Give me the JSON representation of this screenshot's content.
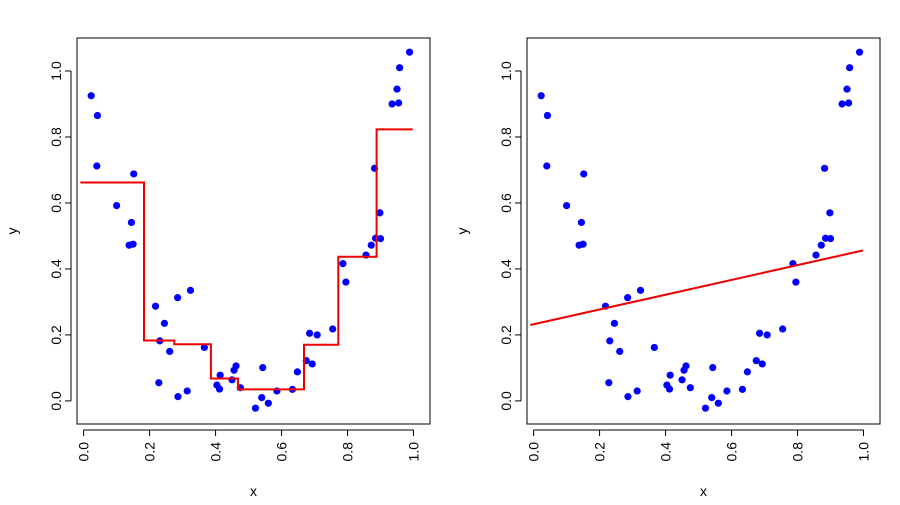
{
  "chart_data": [
    {
      "type": "scatter",
      "overlay": "step",
      "xlabel": "x",
      "ylabel": "y",
      "xlim": [
        -0.02,
        1.05
      ],
      "ylim": [
        -0.07,
        1.1
      ],
      "xticks": [
        0.0,
        0.2,
        0.4,
        0.6,
        0.8,
        1.0
      ],
      "xtick_labels": [
        "0.0",
        "0.2",
        "0.4",
        "0.6",
        "0.8",
        "1.0"
      ],
      "yticks": [
        0.0,
        0.2,
        0.4,
        0.6,
        0.8,
        1.0
      ],
      "ytick_labels": [
        "0.0",
        "0.2",
        "0.4",
        "0.6",
        "0.8",
        "1.0"
      ],
      "grid": false,
      "point_color": "#0000ff",
      "line_color": "#ee0000",
      "points": [
        [
          0.023,
          0.925
        ],
        [
          0.042,
          0.865
        ],
        [
          0.04,
          0.712
        ],
        [
          0.1,
          0.592
        ],
        [
          0.138,
          0.472
        ],
        [
          0.145,
          0.541
        ],
        [
          0.15,
          0.475
        ],
        [
          0.152,
          0.688
        ],
        [
          0.218,
          0.287
        ],
        [
          0.228,
          0.055
        ],
        [
          0.231,
          0.182
        ],
        [
          0.245,
          0.235
        ],
        [
          0.261,
          0.15
        ],
        [
          0.285,
          0.313
        ],
        [
          0.286,
          0.013
        ],
        [
          0.314,
          0.03
        ],
        [
          0.324,
          0.335
        ],
        [
          0.366,
          0.162
        ],
        [
          0.404,
          0.048
        ],
        [
          0.412,
          0.036
        ],
        [
          0.414,
          0.078
        ],
        [
          0.45,
          0.064
        ],
        [
          0.456,
          0.093
        ],
        [
          0.462,
          0.106
        ],
        [
          0.475,
          0.04
        ],
        [
          0.521,
          -0.022
        ],
        [
          0.543,
          0.101
        ],
        [
          0.54,
          0.01
        ],
        [
          0.56,
          -0.007
        ],
        [
          0.586,
          0.03
        ],
        [
          0.633,
          0.035
        ],
        [
          0.648,
          0.088
        ],
        [
          0.675,
          0.122
        ],
        [
          0.685,
          0.205
        ],
        [
          0.693,
          0.112
        ],
        [
          0.708,
          0.2
        ],
        [
          0.755,
          0.218
        ],
        [
          0.786,
          0.416
        ],
        [
          0.795,
          0.36
        ],
        [
          0.856,
          0.442
        ],
        [
          0.872,
          0.472
        ],
        [
          0.885,
          0.493
        ],
        [
          0.882,
          0.705
        ],
        [
          0.9,
          0.492
        ],
        [
          0.898,
          0.57
        ],
        [
          0.935,
          0.9
        ],
        [
          0.95,
          0.945
        ],
        [
          0.955,
          0.903
        ],
        [
          0.958,
          1.01
        ],
        [
          0.988,
          1.057
        ]
      ],
      "step": [
        [
          -0.01,
          0.662
        ],
        [
          0.183,
          0.662
        ],
        [
          0.183,
          0.183
        ],
        [
          0.275,
          0.183
        ],
        [
          0.275,
          0.172
        ],
        [
          0.386,
          0.172
        ],
        [
          0.386,
          0.068
        ],
        [
          0.468,
          0.068
        ],
        [
          0.468,
          0.035
        ],
        [
          0.668,
          0.035
        ],
        [
          0.668,
          0.17
        ],
        [
          0.772,
          0.17
        ],
        [
          0.772,
          0.437
        ],
        [
          0.888,
          0.437
        ],
        [
          0.888,
          0.823
        ],
        [
          0.998,
          0.823
        ]
      ]
    },
    {
      "type": "scatter",
      "overlay": "line",
      "xlabel": "x",
      "ylabel": "y",
      "xlim": [
        -0.02,
        1.05
      ],
      "ylim": [
        -0.07,
        1.1
      ],
      "xticks": [
        0.0,
        0.2,
        0.4,
        0.6,
        0.8,
        1.0
      ],
      "xtick_labels": [
        "0.0",
        "0.2",
        "0.4",
        "0.6",
        "0.8",
        "1.0"
      ],
      "yticks": [
        0.0,
        0.2,
        0.4,
        0.6,
        0.8,
        1.0
      ],
      "ytick_labels": [
        "0.0",
        "0.2",
        "0.4",
        "0.6",
        "0.8",
        "1.0"
      ],
      "grid": false,
      "point_color": "#0000ff",
      "line_color": "#ee0000",
      "points": [
        [
          0.023,
          0.925
        ],
        [
          0.042,
          0.865
        ],
        [
          0.04,
          0.712
        ],
        [
          0.1,
          0.592
        ],
        [
          0.138,
          0.472
        ],
        [
          0.145,
          0.541
        ],
        [
          0.15,
          0.475
        ],
        [
          0.152,
          0.688
        ],
        [
          0.218,
          0.287
        ],
        [
          0.228,
          0.055
        ],
        [
          0.231,
          0.182
        ],
        [
          0.245,
          0.235
        ],
        [
          0.261,
          0.15
        ],
        [
          0.285,
          0.313
        ],
        [
          0.286,
          0.013
        ],
        [
          0.314,
          0.03
        ],
        [
          0.324,
          0.335
        ],
        [
          0.366,
          0.162
        ],
        [
          0.404,
          0.048
        ],
        [
          0.412,
          0.036
        ],
        [
          0.414,
          0.078
        ],
        [
          0.45,
          0.064
        ],
        [
          0.456,
          0.093
        ],
        [
          0.462,
          0.106
        ],
        [
          0.475,
          0.04
        ],
        [
          0.521,
          -0.022
        ],
        [
          0.543,
          0.101
        ],
        [
          0.54,
          0.01
        ],
        [
          0.56,
          -0.007
        ],
        [
          0.586,
          0.03
        ],
        [
          0.633,
          0.035
        ],
        [
          0.648,
          0.088
        ],
        [
          0.675,
          0.122
        ],
        [
          0.685,
          0.205
        ],
        [
          0.693,
          0.112
        ],
        [
          0.708,
          0.2
        ],
        [
          0.755,
          0.218
        ],
        [
          0.786,
          0.416
        ],
        [
          0.795,
          0.36
        ],
        [
          0.856,
          0.442
        ],
        [
          0.872,
          0.472
        ],
        [
          0.885,
          0.493
        ],
        [
          0.882,
          0.705
        ],
        [
          0.9,
          0.492
        ],
        [
          0.898,
          0.57
        ],
        [
          0.935,
          0.9
        ],
        [
          0.95,
          0.945
        ],
        [
          0.955,
          0.903
        ],
        [
          0.958,
          1.01
        ],
        [
          0.988,
          1.057
        ]
      ],
      "line": [
        [
          -0.01,
          0.23
        ],
        [
          0.998,
          0.456
        ]
      ]
    }
  ]
}
